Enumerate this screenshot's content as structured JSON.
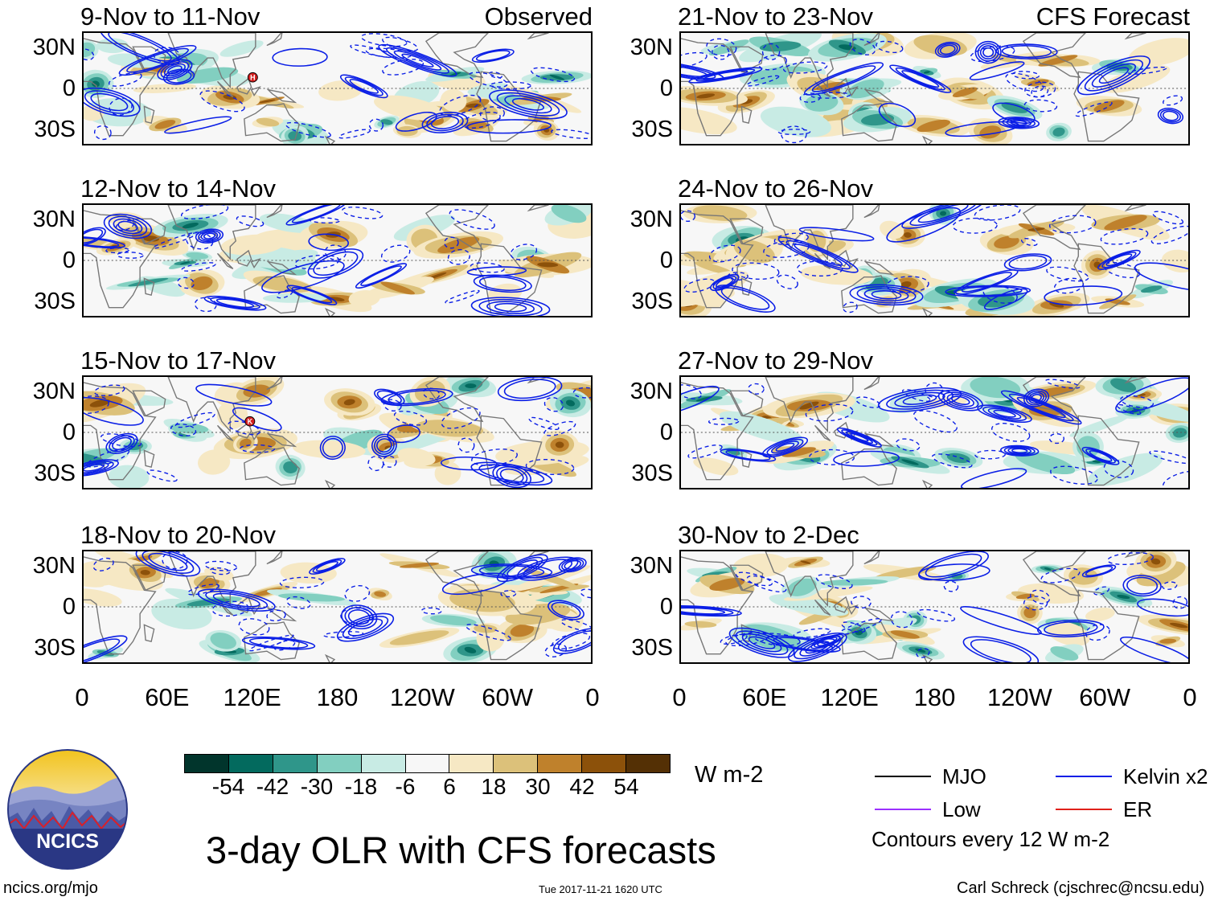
{
  "panels": [
    {
      "id": "p1",
      "title": "9-Nov to 11-Nov",
      "tag": "Observed",
      "seed": 3,
      "marker": {
        "letter": "H",
        "lon": 120,
        "lat": 8
      }
    },
    {
      "id": "p2",
      "title": "12-Nov to 14-Nov",
      "tag": "",
      "seed": 7
    },
    {
      "id": "p3",
      "title": "15-Nov to 17-Nov",
      "tag": "",
      "seed": 11,
      "marker": {
        "letter": "K",
        "lon": 118,
        "lat": 8
      }
    },
    {
      "id": "p4",
      "title": "18-Nov to 20-Nov",
      "tag": "",
      "seed": 19
    },
    {
      "id": "p5",
      "title": "21-Nov to 23-Nov",
      "tag": "CFS Forecast",
      "seed": 23
    },
    {
      "id": "p6",
      "title": "24-Nov to 26-Nov",
      "tag": "",
      "seed": 29
    },
    {
      "id": "p7",
      "title": "27-Nov to 29-Nov",
      "tag": "",
      "seed": 31
    },
    {
      "id": "p8",
      "title": "30-Nov to 2-Dec",
      "tag": "",
      "seed": 37
    }
  ],
  "lat_labels": [
    "30N",
    "0",
    "30S"
  ],
  "lon_labels": [
    "0",
    "60E",
    "120E",
    "180",
    "120W",
    "60W",
    "0"
  ],
  "colorbar": {
    "colors": [
      "#01352c",
      "#036a5e",
      "#2f968a",
      "#82cfc0",
      "#c8ebe4",
      "#f7f7f7",
      "#f6e8c4",
      "#dcc17a",
      "#bf812c",
      "#8c510a",
      "#543005"
    ],
    "labels": [
      "-54",
      "-42",
      "-30",
      "-18",
      "-6",
      "6",
      "18",
      "30",
      "42",
      "54"
    ],
    "units": "W m-2"
  },
  "legend": {
    "items": [
      {
        "label": "MJO",
        "color": "#000000"
      },
      {
        "label": "Kelvin x2",
        "color": "#0a1ee6"
      },
      {
        "label": "Low",
        "color": "#9b30ff"
      },
      {
        "label": "ER",
        "color": "#e0201a"
      }
    ],
    "note": "Contours every 12 W m-2"
  },
  "main_title": "3-day OLR with CFS forecasts",
  "logo_text": "NCICS",
  "footer": {
    "left": "ncics.org/mjo",
    "center": "Tue 2017-11-21 1620 UTC",
    "right": "Carl Schreck (cjschrec@ncsu.edu)"
  }
}
